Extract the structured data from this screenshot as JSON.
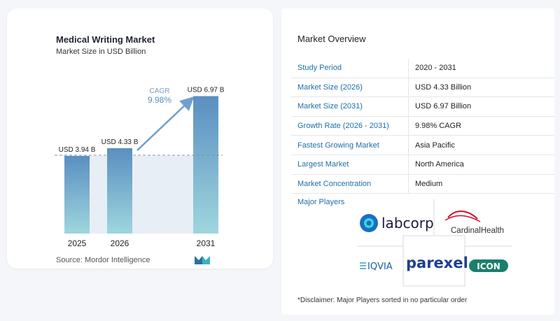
{
  "chart_data": {
    "type": "bar",
    "title": "Medical Writing Market",
    "subtitle": "Market Size in USD Billion",
    "categories": [
      "2025",
      "2026",
      "2031"
    ],
    "values": [
      3.94,
      4.33,
      6.97
    ],
    "data_labels": [
      "USD 3.94 B",
      "USD 4.33 B",
      "USD 6.97 B"
    ],
    "annotation": {
      "label": "CAGR",
      "value": "9.98%"
    },
    "grid": false,
    "colors": {
      "bar_top": "#5a8fc0",
      "bar_bottom": "#9fd6de",
      "band": "#e8eef6",
      "arrow": "#6f9fcc"
    }
  },
  "source": "Source:  Mordor Intelligence",
  "overview": {
    "title": "Market Overview",
    "rows": [
      {
        "key": "Study Period",
        "value": "2020 - 2031"
      },
      {
        "key": "Market Size (2026)",
        "value": "USD 4.33 Billion"
      },
      {
        "key": "Market Size (2031)",
        "value": "USD 6.97 Billion"
      },
      {
        "key": "Growth Rate (2026 - 2031)",
        "value": "9.98% CAGR"
      },
      {
        "key": "Fastest Growing Market",
        "value": "Asia Pacific"
      },
      {
        "key": "Largest Market",
        "value": "North America"
      },
      {
        "key": "Market Concentration",
        "value": "Medium"
      }
    ]
  },
  "players": {
    "title": "Major Players",
    "logos": [
      "labcorp",
      "CardinalHealth",
      "IQVIA",
      "parexel",
      "ICON"
    ]
  },
  "disclaimer": "*Disclaimer: Major Players sorted in no particular order"
}
